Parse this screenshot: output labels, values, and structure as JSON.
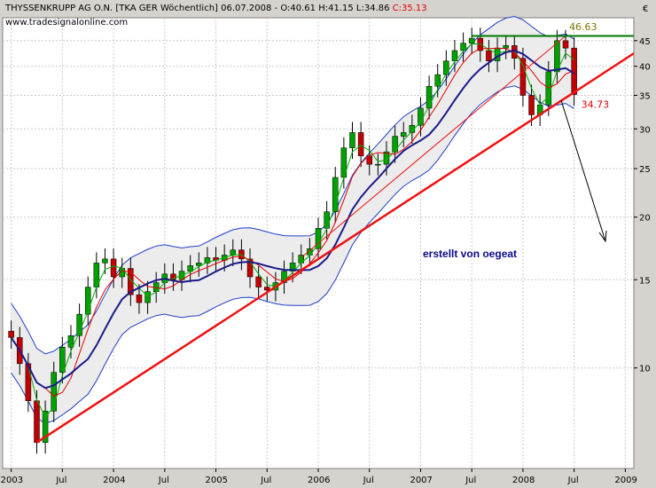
{
  "header": {
    "title": "THYSSENKRUPP AG O.N. [TKA GER  Wöchentlich] 06.07.2008 - O:40.61 H:41.15 L:34.86 ",
    "close": "C:35.13",
    "source": "www.tradesignalonline.com",
    "currency": "€"
  },
  "credit": "erstellt von oegeat",
  "chart_data": {
    "type": "line",
    "title": "THYSSENKRUPP AG O.N. [TKA GER  Wöchentlich] 06.07.2008",
    "ohlc_last": {
      "O": 40.61,
      "H": 41.15,
      "L": 34.86,
      "C": 35.13
    },
    "x_ticks": [
      "2003",
      "Jul",
      "2004",
      "Jul",
      "2005",
      "Jul",
      "2006",
      "Jul",
      "2007",
      "Jul",
      "2008",
      "Jul",
      "2009"
    ],
    "y_scale": "log",
    "y_ticks": [
      10,
      15,
      20,
      25,
      30,
      35,
      40,
      45
    ],
    "ylim": [
      6.3,
      50
    ],
    "xlim": [
      "2002-12",
      "2009-02"
    ],
    "grid": true,
    "series": [
      {
        "x": [
          "2003-01",
          "2003-02",
          "2003-03",
          "2003-04",
          "2003-05",
          "2003-06",
          "2003-07",
          "2003-08",
          "2003-09",
          "2003-10",
          "2003-11",
          "2003-12",
          "2004-01",
          "2004-02",
          "2004-03",
          "2004-04",
          "2004-05",
          "2004-06",
          "2004-07",
          "2004-08",
          "2004-09",
          "2004-10",
          "2004-11",
          "2004-12",
          "2005-01",
          "2005-02",
          "2005-03",
          "2005-04",
          "2005-05",
          "2005-06",
          "2005-07",
          "2005-08",
          "2005-09",
          "2005-10",
          "2005-11",
          "2005-12",
          "2006-01",
          "2006-02",
          "2006-03",
          "2006-04",
          "2006-05",
          "2006-06",
          "2006-07",
          "2006-08",
          "2006-09",
          "2006-10",
          "2006-11",
          "2006-12",
          "2007-01",
          "2007-02",
          "2007-03",
          "2007-04",
          "2007-05",
          "2007-06",
          "2007-07",
          "2007-08",
          "2007-09",
          "2007-10",
          "2007-11",
          "2007-12",
          "2008-01",
          "2008-02",
          "2008-03",
          "2008-04",
          "2008-05",
          "2008-06",
          "2008-07"
        ],
        "values": [
          11.5,
          10.2,
          8.6,
          7.1,
          8.2,
          9.8,
          11.0,
          11.6,
          12.8,
          14.5,
          16.2,
          16.5,
          15.2,
          15.8,
          14.0,
          13.5,
          14.2,
          14.8,
          15.4,
          15.0,
          15.6,
          16.0,
          16.2,
          16.6,
          16.4,
          16.8,
          17.2,
          16.5,
          15.2,
          14.5,
          14.3,
          14.8,
          15.6,
          16.2,
          16.8,
          17.3,
          19.0,
          20.5,
          24.0,
          27.5,
          29.5,
          26.5,
          25.5,
          25.5,
          27.0,
          29.0,
          29.5,
          30.5,
          33.0,
          36.5,
          38.5,
          41.0,
          43.0,
          44.5,
          45.5,
          43.0,
          41.0,
          43.5,
          44.0,
          41.5,
          35.0,
          32.0,
          33.5,
          39.0,
          45.0,
          43.5,
          35.13
        ]
      }
    ],
    "lines": [
      {
        "name": "trendline",
        "from": [
          "2003-04",
          7.1
        ],
        "to": [
          "2008-07",
          35.5
        ]
      },
      {
        "name": "channel",
        "from": [
          "2005-11",
          16.6
        ],
        "to": [
          "2008-06",
          46.0
        ]
      },
      {
        "name": "resistance",
        "y": 46.0
      }
    ],
    "annotations": [
      {
        "text": "46.63",
        "x": "2008-06",
        "y": 46.63
      },
      {
        "text": "34.73",
        "x": "2008-07",
        "y": 34.73
      }
    ],
    "colors": {
      "candle_up": "#00a000",
      "candle_down": "#c00000",
      "ma_short": "#00b000",
      "ma_mid": "#e00000",
      "ma_long": "#1a1a8c",
      "bollinger": "#1f3ec8",
      "trendline": "#ee1111",
      "resistance": "#007700",
      "background": "#ffffff",
      "band_fill": "#ececec",
      "arrow": "#000000"
    }
  }
}
